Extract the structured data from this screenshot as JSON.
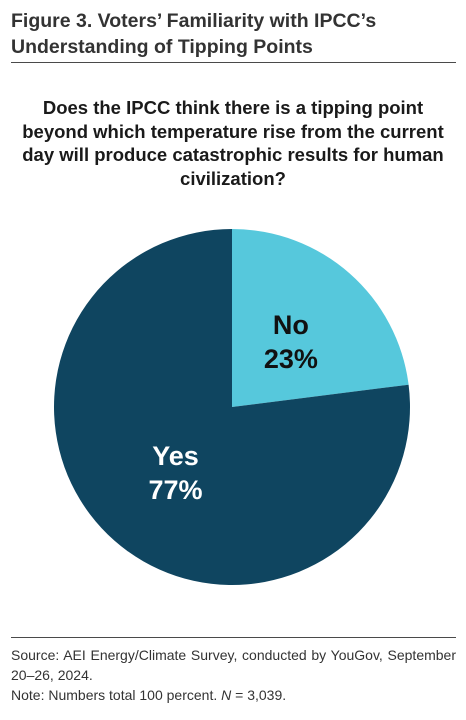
{
  "figure_title": "Figure 3. Voters’ Familiarity with IPCC’s Understanding of Tipping Points",
  "chart_data": {
    "type": "pie",
    "title": "Does the IPCC think there is a tipping point beyond which temperature rise from the current day will produce catastrophic results for human civilization?",
    "slices": [
      {
        "label": "No",
        "value": 23,
        "value_label": "23%",
        "color": "#56c8dc"
      },
      {
        "label": "Yes",
        "value": 77,
        "value_label": "77%",
        "color": "#0f4560"
      }
    ],
    "start_angle_deg": 0,
    "direction": "clockwise"
  },
  "footer": {
    "source": "Source: AEI Energy/Climate Survey, conducted by YouGov, September 20–26, 2024.",
    "note_prefix": "Note: Numbers total 100 percent. ",
    "note_n": "N",
    "note_suffix": " = 3,039."
  },
  "colors": {
    "rule": "#4a4a4a",
    "label_on_light": "#111111",
    "label_on_dark": "#ffffff"
  }
}
